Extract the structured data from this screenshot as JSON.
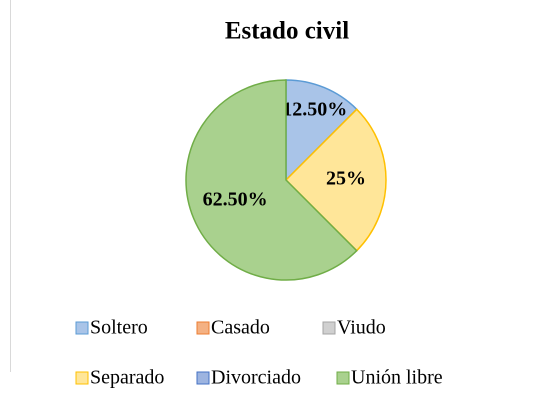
{
  "chart_data": {
    "type": "pie",
    "title": "Estado civil",
    "categories": [
      "Soltero",
      "Casado",
      "Viudo",
      "Separado",
      "Divorciado",
      "Unión libre"
    ],
    "values": [
      12.5,
      0,
      0,
      25,
      0,
      62.5
    ],
    "value_labels": [
      "12.50%",
      null,
      null,
      "25%",
      null,
      "62.50%"
    ],
    "colors": [
      "#a9c4e8",
      "#f4b183",
      "#d0d0d0",
      "#ffe699",
      "#9db4e0",
      "#a9d18e"
    ],
    "edge_colors": [
      "#5b9bd5",
      "#ed7d31",
      "#a5a5a5",
      "#ffc000",
      "#4472c4",
      "#70ad47"
    ],
    "legend": "bottom"
  }
}
